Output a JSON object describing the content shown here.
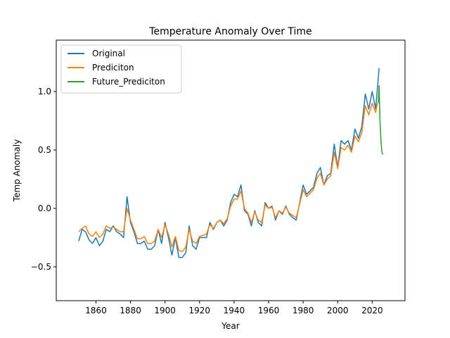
{
  "chart_data": {
    "type": "line",
    "title": "Temperature Anomaly Over Time",
    "xlabel": "Year",
    "ylabel": "Temp Anomaly",
    "xlim": [
      1837,
      2039
    ],
    "ylim": [
      -0.79,
      1.44
    ],
    "xticks": [
      1860,
      1880,
      1900,
      1920,
      1940,
      1960,
      1980,
      2000,
      2020
    ],
    "yticks": [
      -0.5,
      0.0,
      0.5,
      1.0
    ],
    "ytick_labels": [
      "−0.5",
      "0.0",
      "0.5",
      "1.0"
    ],
    "grid": false,
    "legend_position": "upper-left",
    "series": [
      {
        "name": "Original",
        "color": "#1f77b4",
        "points": [
          [
            1850,
            -0.28
          ],
          [
            1852,
            -0.18
          ],
          [
            1854,
            -0.2
          ],
          [
            1856,
            -0.27
          ],
          [
            1858,
            -0.3
          ],
          [
            1860,
            -0.25
          ],
          [
            1862,
            -0.32
          ],
          [
            1864,
            -0.28
          ],
          [
            1866,
            -0.18
          ],
          [
            1868,
            -0.2
          ],
          [
            1870,
            -0.15
          ],
          [
            1872,
            -0.2
          ],
          [
            1874,
            -0.22
          ],
          [
            1876,
            -0.25
          ],
          [
            1878,
            0.1
          ],
          [
            1880,
            -0.12
          ],
          [
            1882,
            -0.2
          ],
          [
            1884,
            -0.3
          ],
          [
            1886,
            -0.3
          ],
          [
            1888,
            -0.28
          ],
          [
            1890,
            -0.35
          ],
          [
            1892,
            -0.35
          ],
          [
            1894,
            -0.32
          ],
          [
            1896,
            -0.18
          ],
          [
            1898,
            -0.3
          ],
          [
            1900,
            -0.12
          ],
          [
            1902,
            -0.25
          ],
          [
            1904,
            -0.4
          ],
          [
            1906,
            -0.25
          ],
          [
            1908,
            -0.42
          ],
          [
            1910,
            -0.42
          ],
          [
            1912,
            -0.38
          ],
          [
            1914,
            -0.15
          ],
          [
            1916,
            -0.32
          ],
          [
            1918,
            -0.35
          ],
          [
            1920,
            -0.25
          ],
          [
            1922,
            -0.25
          ],
          [
            1924,
            -0.25
          ],
          [
            1926,
            -0.12
          ],
          [
            1928,
            -0.18
          ],
          [
            1930,
            -0.12
          ],
          [
            1932,
            -0.1
          ],
          [
            1934,
            -0.15
          ],
          [
            1936,
            -0.1
          ],
          [
            1938,
            0.05
          ],
          [
            1940,
            0.12
          ],
          [
            1942,
            0.1
          ],
          [
            1944,
            0.2
          ],
          [
            1946,
            -0.02
          ],
          [
            1948,
            -0.05
          ],
          [
            1950,
            -0.15
          ],
          [
            1952,
            -0.02
          ],
          [
            1954,
            -0.12
          ],
          [
            1956,
            -0.15
          ],
          [
            1958,
            0.05
          ],
          [
            1960,
            0.0
          ],
          [
            1962,
            0.02
          ],
          [
            1964,
            -0.1
          ],
          [
            1966,
            -0.02
          ],
          [
            1968,
            -0.05
          ],
          [
            1970,
            0.02
          ],
          [
            1972,
            -0.05
          ],
          [
            1974,
            -0.08
          ],
          [
            1976,
            -0.1
          ],
          [
            1978,
            0.05
          ],
          [
            1980,
            0.2
          ],
          [
            1982,
            0.12
          ],
          [
            1984,
            0.15
          ],
          [
            1986,
            0.18
          ],
          [
            1988,
            0.3
          ],
          [
            1990,
            0.35
          ],
          [
            1992,
            0.2
          ],
          [
            1994,
            0.28
          ],
          [
            1996,
            0.3
          ],
          [
            1998,
            0.55
          ],
          [
            2000,
            0.35
          ],
          [
            2002,
            0.58
          ],
          [
            2004,
            0.55
          ],
          [
            2006,
            0.58
          ],
          [
            2008,
            0.5
          ],
          [
            2010,
            0.68
          ],
          [
            2012,
            0.6
          ],
          [
            2014,
            0.7
          ],
          [
            2016,
            0.98
          ],
          [
            2018,
            0.85
          ],
          [
            2020,
            1.0
          ],
          [
            2022,
            0.85
          ],
          [
            2024,
            1.2
          ]
        ]
      },
      {
        "name": "Prediciton",
        "color": "#ff7f0e",
        "points": [
          [
            1850,
            -0.2
          ],
          [
            1852,
            -0.17
          ],
          [
            1854,
            -0.15
          ],
          [
            1856,
            -0.22
          ],
          [
            1858,
            -0.24
          ],
          [
            1860,
            -0.2
          ],
          [
            1862,
            -0.25
          ],
          [
            1864,
            -0.22
          ],
          [
            1866,
            -0.15
          ],
          [
            1868,
            -0.17
          ],
          [
            1870,
            -0.16
          ],
          [
            1872,
            -0.18
          ],
          [
            1874,
            -0.2
          ],
          [
            1876,
            -0.2
          ],
          [
            1878,
            0.0
          ],
          [
            1880,
            -0.1
          ],
          [
            1882,
            -0.18
          ],
          [
            1884,
            -0.26
          ],
          [
            1886,
            -0.26
          ],
          [
            1888,
            -0.24
          ],
          [
            1890,
            -0.3
          ],
          [
            1892,
            -0.3
          ],
          [
            1894,
            -0.28
          ],
          [
            1896,
            -0.18
          ],
          [
            1898,
            -0.25
          ],
          [
            1900,
            -0.14
          ],
          [
            1902,
            -0.22
          ],
          [
            1904,
            -0.33
          ],
          [
            1906,
            -0.24
          ],
          [
            1908,
            -0.36
          ],
          [
            1910,
            -0.37
          ],
          [
            1912,
            -0.33
          ],
          [
            1914,
            -0.18
          ],
          [
            1916,
            -0.28
          ],
          [
            1918,
            -0.3
          ],
          [
            1920,
            -0.24
          ],
          [
            1922,
            -0.23
          ],
          [
            1924,
            -0.22
          ],
          [
            1926,
            -0.14
          ],
          [
            1928,
            -0.17
          ],
          [
            1930,
            -0.12
          ],
          [
            1932,
            -0.1
          ],
          [
            1934,
            -0.13
          ],
          [
            1936,
            -0.09
          ],
          [
            1938,
            0.02
          ],
          [
            1940,
            0.08
          ],
          [
            1942,
            0.08
          ],
          [
            1944,
            0.15
          ],
          [
            1946,
            0.0
          ],
          [
            1948,
            -0.04
          ],
          [
            1950,
            -0.12
          ],
          [
            1952,
            -0.03
          ],
          [
            1954,
            -0.1
          ],
          [
            1956,
            -0.12
          ],
          [
            1958,
            0.03
          ],
          [
            1960,
            0.0
          ],
          [
            1962,
            0.01
          ],
          [
            1964,
            -0.08
          ],
          [
            1966,
            -0.02
          ],
          [
            1968,
            -0.04
          ],
          [
            1970,
            0.01
          ],
          [
            1972,
            -0.04
          ],
          [
            1974,
            -0.06
          ],
          [
            1976,
            -0.08
          ],
          [
            1978,
            0.04
          ],
          [
            1980,
            0.16
          ],
          [
            1982,
            0.1
          ],
          [
            1984,
            0.13
          ],
          [
            1986,
            0.16
          ],
          [
            1988,
            0.26
          ],
          [
            1990,
            0.3
          ],
          [
            1992,
            0.2
          ],
          [
            1994,
            0.25
          ],
          [
            1996,
            0.28
          ],
          [
            1998,
            0.48
          ],
          [
            2000,
            0.34
          ],
          [
            2002,
            0.52
          ],
          [
            2004,
            0.5
          ],
          [
            2006,
            0.54
          ],
          [
            2008,
            0.48
          ],
          [
            2010,
            0.62
          ],
          [
            2012,
            0.57
          ],
          [
            2014,
            0.65
          ],
          [
            2016,
            0.88
          ],
          [
            2018,
            0.8
          ],
          [
            2020,
            0.9
          ],
          [
            2022,
            0.82
          ],
          [
            2023,
            0.9
          ]
        ]
      },
      {
        "name": "Future_Prediciton",
        "color": "#2ca02c",
        "points": [
          [
            2023.5,
            0.9
          ],
          [
            2024,
            1.05
          ],
          [
            2024.5,
            0.75
          ],
          [
            2025,
            0.6
          ],
          [
            2025.5,
            0.5
          ],
          [
            2026,
            0.46
          ]
        ]
      }
    ]
  }
}
